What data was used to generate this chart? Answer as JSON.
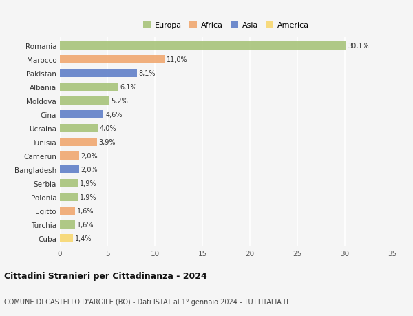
{
  "countries": [
    "Romania",
    "Marocco",
    "Pakistan",
    "Albania",
    "Moldova",
    "Cina",
    "Ucraina",
    "Tunisia",
    "Camerun",
    "Bangladesh",
    "Serbia",
    "Polonia",
    "Egitto",
    "Turchia",
    "Cuba"
  ],
  "values": [
    30.1,
    11.0,
    8.1,
    6.1,
    5.2,
    4.6,
    4.0,
    3.9,
    2.0,
    2.0,
    1.9,
    1.9,
    1.6,
    1.6,
    1.4
  ],
  "labels": [
    "30,1%",
    "11,0%",
    "8,1%",
    "6,1%",
    "5,2%",
    "4,6%",
    "4,0%",
    "3,9%",
    "2,0%",
    "2,0%",
    "1,9%",
    "1,9%",
    "1,6%",
    "1,6%",
    "1,4%"
  ],
  "continents": [
    "Europa",
    "Africa",
    "Asia",
    "Europa",
    "Europa",
    "Asia",
    "Europa",
    "Africa",
    "Africa",
    "Asia",
    "Europa",
    "Europa",
    "Africa",
    "Europa",
    "America"
  ],
  "colors": {
    "Europa": "#a8c47a",
    "Africa": "#f0a870",
    "Asia": "#6080c8",
    "America": "#f8d870"
  },
  "xlim": [
    0,
    35
  ],
  "xticks": [
    0,
    5,
    10,
    15,
    20,
    25,
    30,
    35
  ],
  "title": "Cittadini Stranieri per Cittadinanza - 2024",
  "subtitle": "COMUNE DI CASTELLO D'ARGILE (BO) - Dati ISTAT al 1° gennaio 2024 - TUTTITALIA.IT",
  "background_color": "#f5f5f5",
  "grid_color": "#ffffff",
  "bar_height": 0.6
}
